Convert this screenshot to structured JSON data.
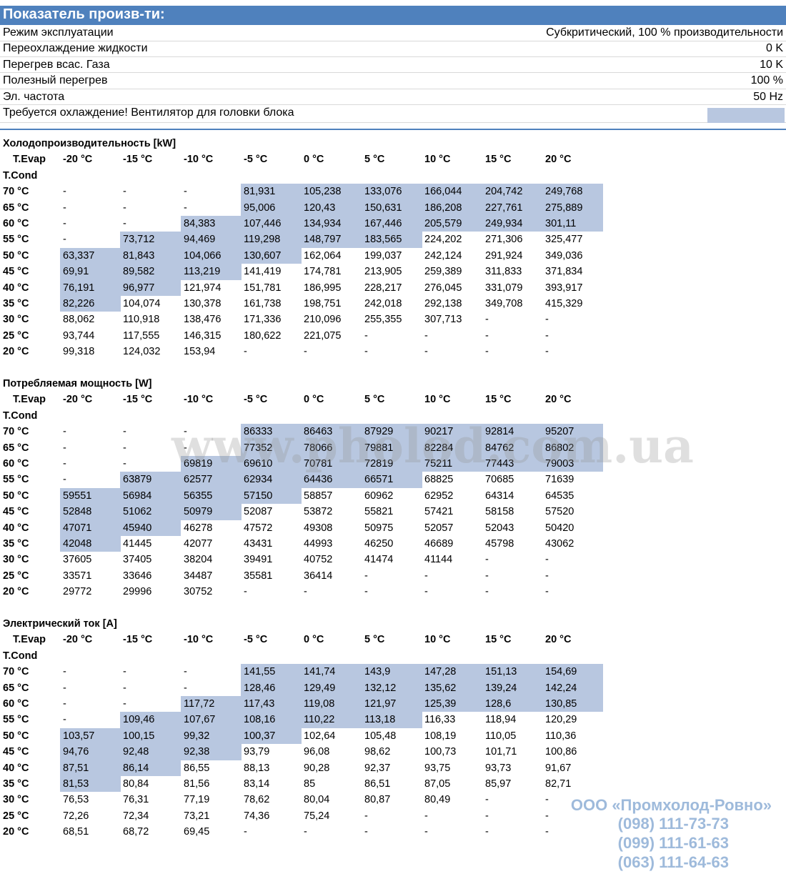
{
  "header": {
    "title": "Показатель произв-ти:"
  },
  "settings": [
    {
      "label": "Режим эксплуатации",
      "value": "Субкритический, 100 % производительности"
    },
    {
      "label": "Переохлаждение жидкости",
      "value": "0 K"
    },
    {
      "label": "Перегрев всас. Газа",
      "value": "10 K"
    },
    {
      "label": "Полезный перегрев",
      "value": "100 %"
    },
    {
      "label": "Эл. частота",
      "value": "50 Hz"
    },
    {
      "label": "Требуется охлаждение! Вентилятор для головки блока"
    }
  ],
  "tables": [
    {
      "title": "Холодопроизводительность [kW]",
      "corner_label": "T.Evap",
      "row_header_label": "T.Cond",
      "columns": [
        "-20 °C",
        "-15 °C",
        "-10 °C",
        "-5 °C",
        "0 °C",
        "5 °C",
        "10 °C",
        "15 °C",
        "20 °C"
      ],
      "rows": [
        {
          "label": "70 °C",
          "cells": [
            "-",
            "-",
            "-",
            "81,931",
            "105,238",
            "133,076",
            "166,044",
            "204,742",
            "249,768"
          ]
        },
        {
          "label": "65 °C",
          "cells": [
            "-",
            "-",
            "-",
            "95,006",
            "120,43",
            "150,631",
            "186,208",
            "227,761",
            "275,889"
          ]
        },
        {
          "label": "60 °C",
          "cells": [
            "-",
            "-",
            "84,383",
            "107,446",
            "134,934",
            "167,446",
            "205,579",
            "249,934",
            "301,11"
          ]
        },
        {
          "label": "55 °C",
          "cells": [
            "-",
            "73,712",
            "94,469",
            "119,298",
            "148,797",
            "183,565",
            "224,202",
            "271,306",
            "325,477"
          ]
        },
        {
          "label": "50 °C",
          "cells": [
            "63,337",
            "81,843",
            "104,066",
            "130,607",
            "162,064",
            "199,037",
            "242,124",
            "291,924",
            "349,036"
          ]
        },
        {
          "label": "45 °C",
          "cells": [
            "69,91",
            "89,582",
            "113,219",
            "141,419",
            "174,781",
            "213,905",
            "259,389",
            "311,833",
            "371,834"
          ]
        },
        {
          "label": "40 °C",
          "cells": [
            "76,191",
            "96,977",
            "121,974",
            "151,781",
            "186,995",
            "228,217",
            "276,045",
            "331,079",
            "393,917"
          ]
        },
        {
          "label": "35 °C",
          "cells": [
            "82,226",
            "104,074",
            "130,378",
            "161,738",
            "198,751",
            "242,018",
            "292,138",
            "349,708",
            "415,329"
          ]
        },
        {
          "label": "30 °C",
          "cells": [
            "88,062",
            "110,918",
            "138,476",
            "171,336",
            "210,096",
            "255,355",
            "307,713",
            "-",
            "-"
          ]
        },
        {
          "label": "25 °C",
          "cells": [
            "93,744",
            "117,555",
            "146,315",
            "180,622",
            "221,075",
            "-",
            "-",
            "-",
            "-"
          ]
        },
        {
          "label": "20 °C",
          "cells": [
            "99,318",
            "124,032",
            "153,94",
            "-",
            "-",
            "-",
            "-",
            "-",
            "-"
          ]
        }
      ]
    },
    {
      "title": "Потребляемая мощность [W]",
      "corner_label": "T.Evap",
      "row_header_label": "T.Cond",
      "columns": [
        "-20 °C",
        "-15 °C",
        "-10 °C",
        "-5 °C",
        "0 °C",
        "5 °C",
        "10 °C",
        "15 °C",
        "20 °C"
      ],
      "rows": [
        {
          "label": "70 °C",
          "cells": [
            "-",
            "-",
            "-",
            "86333",
            "86463",
            "87929",
            "90217",
            "92814",
            "95207"
          ]
        },
        {
          "label": "65 °C",
          "cells": [
            "-",
            "-",
            "-",
            "77352",
            "78066",
            "79881",
            "82284",
            "84762",
            "86802"
          ]
        },
        {
          "label": "60 °C",
          "cells": [
            "-",
            "-",
            "69819",
            "69610",
            "70781",
            "72819",
            "75211",
            "77443",
            "79003"
          ]
        },
        {
          "label": "55 °C",
          "cells": [
            "-",
            "63879",
            "62577",
            "62934",
            "64436",
            "66571",
            "68825",
            "70685",
            "71639"
          ]
        },
        {
          "label": "50 °C",
          "cells": [
            "59551",
            "56984",
            "56355",
            "57150",
            "58857",
            "60962",
            "62952",
            "64314",
            "64535"
          ]
        },
        {
          "label": "45 °C",
          "cells": [
            "52848",
            "51062",
            "50979",
            "52087",
            "53872",
            "55821",
            "57421",
            "58158",
            "57520"
          ]
        },
        {
          "label": "40 °C",
          "cells": [
            "47071",
            "45940",
            "46278",
            "47572",
            "49308",
            "50975",
            "52057",
            "52043",
            "50420"
          ]
        },
        {
          "label": "35 °C",
          "cells": [
            "42048",
            "41445",
            "42077",
            "43431",
            "44993",
            "46250",
            "46689",
            "45798",
            "43062"
          ]
        },
        {
          "label": "30 °C",
          "cells": [
            "37605",
            "37405",
            "38204",
            "39491",
            "40752",
            "41474",
            "41144",
            "-",
            "-"
          ]
        },
        {
          "label": "25 °C",
          "cells": [
            "33571",
            "33646",
            "34487",
            "35581",
            "36414",
            "-",
            "-",
            "-",
            "-"
          ]
        },
        {
          "label": "20 °C",
          "cells": [
            "29772",
            "29996",
            "30752",
            "-",
            "-",
            "-",
            "-",
            "-",
            "-"
          ]
        }
      ]
    },
    {
      "title": "Электрический ток [A]",
      "corner_label": "T.Evap",
      "row_header_label": "T.Cond",
      "columns": [
        "-20 °C",
        "-15 °C",
        "-10 °C",
        "-5 °C",
        "0 °C",
        "5 °C",
        "10 °C",
        "15 °C",
        "20 °C"
      ],
      "rows": [
        {
          "label": "70 °C",
          "cells": [
            "-",
            "-",
            "-",
            "141,55",
            "141,74",
            "143,9",
            "147,28",
            "151,13",
            "154,69"
          ]
        },
        {
          "label": "65 °C",
          "cells": [
            "-",
            "-",
            "-",
            "128,46",
            "129,49",
            "132,12",
            "135,62",
            "139,24",
            "142,24"
          ]
        },
        {
          "label": "60 °C",
          "cells": [
            "-",
            "-",
            "117,72",
            "117,43",
            "119,08",
            "121,97",
            "125,39",
            "128,6",
            "130,85"
          ]
        },
        {
          "label": "55 °C",
          "cells": [
            "-",
            "109,46",
            "107,67",
            "108,16",
            "110,22",
            "113,18",
            "116,33",
            "118,94",
            "120,29"
          ]
        },
        {
          "label": "50 °C",
          "cells": [
            "103,57",
            "100,15",
            "99,32",
            "100,37",
            "102,64",
            "105,48",
            "108,19",
            "110,05",
            "110,36"
          ]
        },
        {
          "label": "45 °C",
          "cells": [
            "94,76",
            "92,48",
            "92,38",
            "93,79",
            "96,08",
            "98,62",
            "100,73",
            "101,71",
            "100,86"
          ]
        },
        {
          "label": "40 °C",
          "cells": [
            "87,51",
            "86,14",
            "86,55",
            "88,13",
            "90,28",
            "92,37",
            "93,75",
            "93,73",
            "91,67"
          ]
        },
        {
          "label": "35 °C",
          "cells": [
            "81,53",
            "80,84",
            "81,56",
            "83,14",
            "85",
            "86,51",
            "87,05",
            "85,97",
            "82,71"
          ]
        },
        {
          "label": "30 °C",
          "cells": [
            "76,53",
            "76,31",
            "77,19",
            "78,62",
            "80,04",
            "80,87",
            "80,49",
            "-",
            "-"
          ]
        },
        {
          "label": "25 °C",
          "cells": [
            "72,26",
            "72,34",
            "73,21",
            "74,36",
            "75,24",
            "-",
            "-",
            "-",
            "-"
          ]
        },
        {
          "label": "20 °C",
          "cells": [
            "68,51",
            "68,72",
            "69,45",
            "-",
            "-",
            "-",
            "-",
            "-",
            "-"
          ]
        }
      ]
    }
  ],
  "watermark": {
    "site": "www.pholod.com.ua",
    "contacts": [
      "ООО «Промхолод-Ровно»",
      "(098) 111-73-73",
      "(099) 111-61-63",
      "(063) 111-64-63"
    ]
  }
}
